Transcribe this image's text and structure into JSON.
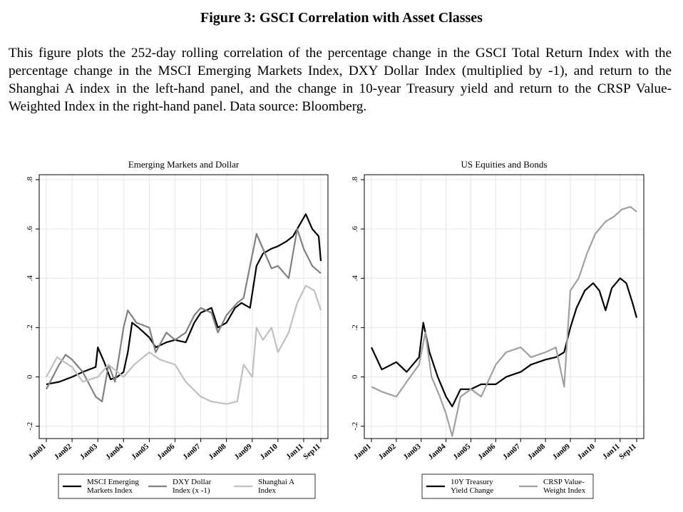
{
  "figure": {
    "title": "Figure 3: GSCI Correlation with Asset Classes",
    "caption": "This figure plots the 252-day rolling correlation of the percentage change in the GSCI Total Return Index with the percentage change in the MSCI Emerging Markets Index, DXY Dollar Index (multiplied by -1), and return to the Shanghai A index in the left-hand panel, and the change in 10-year Treasury yield and return to the CRSP Value-Weighted Index in the right-hand panel.  Data source: Bloomberg."
  },
  "chart_data": [
    {
      "type": "line",
      "title": "Emerging Markets and Dollar",
      "xlabel": "",
      "ylabel": "",
      "x_tick_labels": [
        "Jan01",
        "Jan02",
        "Jan03",
        "Jan04",
        "Jan05",
        "Jan06",
        "Jan07",
        "Jan08",
        "Jan09",
        "Jan10",
        "Jan11",
        "Sep11"
      ],
      "x_range": [
        "2001-01",
        "2011-09"
      ],
      "y_tick_labels": [
        "-.2",
        "0",
        ".2",
        ".4",
        ".6",
        ".8"
      ],
      "ylim": [
        -0.25,
        0.82
      ],
      "grid": true,
      "legend_position": "bottom",
      "series": [
        {
          "name": "MSCI Emerging Markets Index",
          "color": "#000000",
          "points": [
            [
              "2001-01",
              -0.03
            ],
            [
              "2001-07",
              -0.02
            ],
            [
              "2002-01",
              0.0
            ],
            [
              "2002-06",
              0.02
            ],
            [
              "2002-12",
              0.04
            ],
            [
              "2003-01",
              0.12
            ],
            [
              "2003-04",
              0.06
            ],
            [
              "2003-07",
              -0.01
            ],
            [
              "2003-10",
              0.0
            ],
            [
              "2004-01",
              0.02
            ],
            [
              "2004-03",
              0.1
            ],
            [
              "2004-05",
              0.22
            ],
            [
              "2004-08",
              0.2
            ],
            [
              "2005-01",
              0.16
            ],
            [
              "2005-04",
              0.12
            ],
            [
              "2005-09",
              0.14
            ],
            [
              "2006-01",
              0.15
            ],
            [
              "2006-06",
              0.14
            ],
            [
              "2006-10",
              0.22
            ],
            [
              "2007-01",
              0.26
            ],
            [
              "2007-06",
              0.28
            ],
            [
              "2007-09",
              0.2
            ],
            [
              "2008-01",
              0.22
            ],
            [
              "2008-05",
              0.28
            ],
            [
              "2008-08",
              0.3
            ],
            [
              "2008-12",
              0.28
            ],
            [
              "2009-03",
              0.45
            ],
            [
              "2009-06",
              0.5
            ],
            [
              "2009-10",
              0.52
            ],
            [
              "2010-01",
              0.53
            ],
            [
              "2010-05",
              0.55
            ],
            [
              "2010-08",
              0.57
            ],
            [
              "2010-12",
              0.63
            ],
            [
              "2011-02",
              0.66
            ],
            [
              "2011-05",
              0.6
            ],
            [
              "2011-08",
              0.57
            ],
            [
              "2011-09",
              0.47
            ]
          ]
        },
        {
          "name": "DXY Dollar Index (x -1)",
          "color": "#808080",
          "points": [
            [
              "2001-01",
              -0.05
            ],
            [
              "2001-07",
              0.05
            ],
            [
              "2001-10",
              0.09
            ],
            [
              "2002-01",
              0.07
            ],
            [
              "2002-06",
              0.02
            ],
            [
              "2002-12",
              -0.08
            ],
            [
              "2003-03",
              -0.1
            ],
            [
              "2003-06",
              0.05
            ],
            [
              "2003-09",
              -0.02
            ],
            [
              "2004-01",
              0.2
            ],
            [
              "2004-03",
              0.27
            ],
            [
              "2004-07",
              0.22
            ],
            [
              "2005-01",
              0.2
            ],
            [
              "2005-04",
              0.1
            ],
            [
              "2005-09",
              0.18
            ],
            [
              "2006-01",
              0.15
            ],
            [
              "2006-06",
              0.18
            ],
            [
              "2006-10",
              0.25
            ],
            [
              "2007-01",
              0.28
            ],
            [
              "2007-06",
              0.26
            ],
            [
              "2007-09",
              0.18
            ],
            [
              "2008-01",
              0.25
            ],
            [
              "2008-06",
              0.3
            ],
            [
              "2008-09",
              0.32
            ],
            [
              "2008-12",
              0.45
            ],
            [
              "2009-03",
              0.58
            ],
            [
              "2009-06",
              0.52
            ],
            [
              "2009-10",
              0.44
            ],
            [
              "2010-01",
              0.45
            ],
            [
              "2010-06",
              0.4
            ],
            [
              "2010-10",
              0.6
            ],
            [
              "2011-01",
              0.52
            ],
            [
              "2011-05",
              0.45
            ],
            [
              "2011-09",
              0.42
            ]
          ]
        },
        {
          "name": "Shanghai A Index",
          "color": "#c0c0c0",
          "points": [
            [
              "2001-01",
              0.0
            ],
            [
              "2001-06",
              0.08
            ],
            [
              "2002-01",
              0.04
            ],
            [
              "2002-06",
              -0.02
            ],
            [
              "2003-01",
              0.0
            ],
            [
              "2003-06",
              0.05
            ],
            [
              "2004-01",
              0.0
            ],
            [
              "2004-06",
              0.05
            ],
            [
              "2005-01",
              0.1
            ],
            [
              "2005-06",
              0.07
            ],
            [
              "2006-01",
              0.05
            ],
            [
              "2006-06",
              -0.02
            ],
            [
              "2007-01",
              -0.08
            ],
            [
              "2007-06",
              -0.1
            ],
            [
              "2008-01",
              -0.11
            ],
            [
              "2008-06",
              -0.1
            ],
            [
              "2008-09",
              0.05
            ],
            [
              "2009-01",
              0.0
            ],
            [
              "2009-03",
              0.2
            ],
            [
              "2009-06",
              0.15
            ],
            [
              "2009-10",
              0.2
            ],
            [
              "2010-01",
              0.1
            ],
            [
              "2010-06",
              0.18
            ],
            [
              "2010-10",
              0.3
            ],
            [
              "2011-02",
              0.37
            ],
            [
              "2011-06",
              0.35
            ],
            [
              "2011-09",
              0.27
            ]
          ]
        }
      ]
    },
    {
      "type": "line",
      "title": "US Equities and Bonds",
      "xlabel": "",
      "ylabel": "",
      "x_tick_labels": [
        "Jan01",
        "Jan02",
        "Jan03",
        "Jan04",
        "Jan05",
        "Jan06",
        "Jan07",
        "Jan08",
        "Jan09",
        "Jan10",
        "Jan11",
        "Sep11"
      ],
      "x_range": [
        "2001-01",
        "2011-09"
      ],
      "y_tick_labels": [
        "-.2",
        "0",
        ".2",
        ".4",
        ".6",
        ".8"
      ],
      "ylim": [
        -0.25,
        0.82
      ],
      "grid": true,
      "legend_position": "bottom",
      "series": [
        {
          "name": "10Y Treasury Yield Change",
          "color": "#000000",
          "points": [
            [
              "2001-01",
              0.12
            ],
            [
              "2001-06",
              0.03
            ],
            [
              "2002-01",
              0.06
            ],
            [
              "2002-06",
              0.02
            ],
            [
              "2002-12",
              0.08
            ],
            [
              "2003-02",
              0.22
            ],
            [
              "2003-05",
              0.1
            ],
            [
              "2003-09",
              0.0
            ],
            [
              "2004-01",
              -0.08
            ],
            [
              "2004-04",
              -0.12
            ],
            [
              "2004-08",
              -0.05
            ],
            [
              "2005-01",
              -0.05
            ],
            [
              "2005-06",
              -0.03
            ],
            [
              "2006-01",
              -0.03
            ],
            [
              "2006-06",
              0.0
            ],
            [
              "2007-01",
              0.02
            ],
            [
              "2007-06",
              0.05
            ],
            [
              "2008-01",
              0.07
            ],
            [
              "2008-06",
              0.08
            ],
            [
              "2008-10",
              0.1
            ],
            [
              "2009-01",
              0.2
            ],
            [
              "2009-04",
              0.28
            ],
            [
              "2009-08",
              0.35
            ],
            [
              "2009-12",
              0.38
            ],
            [
              "2010-03",
              0.35
            ],
            [
              "2010-06",
              0.27
            ],
            [
              "2010-09",
              0.36
            ],
            [
              "2011-01",
              0.4
            ],
            [
              "2011-04",
              0.38
            ],
            [
              "2011-07",
              0.3
            ],
            [
              "2011-09",
              0.24
            ]
          ]
        },
        {
          "name": "CRSP Value-Weight Index",
          "color": "#a0a0a0",
          "points": [
            [
              "2001-01",
              -0.04
            ],
            [
              "2001-06",
              -0.06
            ],
            [
              "2002-01",
              -0.08
            ],
            [
              "2002-06",
              -0.02
            ],
            [
              "2002-12",
              0.05
            ],
            [
              "2003-03",
              0.18
            ],
            [
              "2003-06",
              0.0
            ],
            [
              "2003-10",
              -0.08
            ],
            [
              "2004-01",
              -0.15
            ],
            [
              "2004-04",
              -0.24
            ],
            [
              "2004-08",
              -0.08
            ],
            [
              "2005-01",
              -0.05
            ],
            [
              "2005-06",
              -0.08
            ],
            [
              "2006-01",
              0.05
            ],
            [
              "2006-06",
              0.1
            ],
            [
              "2007-01",
              0.12
            ],
            [
              "2007-06",
              0.08
            ],
            [
              "2008-01",
              0.1
            ],
            [
              "2008-06",
              0.12
            ],
            [
              "2008-10",
              -0.04
            ],
            [
              "2009-01",
              0.35
            ],
            [
              "2009-05",
              0.4
            ],
            [
              "2009-09",
              0.5
            ],
            [
              "2010-01",
              0.58
            ],
            [
              "2010-06",
              0.63
            ],
            [
              "2010-10",
              0.65
            ],
            [
              "2011-02",
              0.68
            ],
            [
              "2011-06",
              0.69
            ],
            [
              "2011-09",
              0.67
            ]
          ]
        }
      ]
    }
  ]
}
